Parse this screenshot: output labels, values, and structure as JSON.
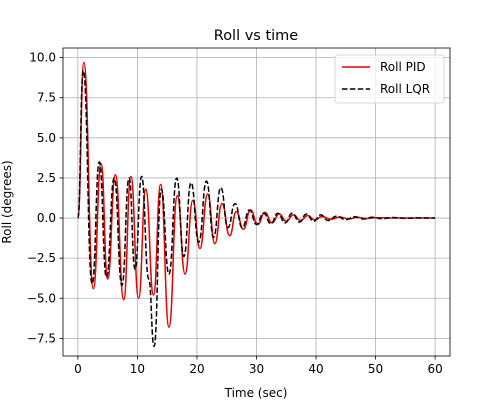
{
  "chart_data": {
    "type": "line",
    "title": "Roll vs time",
    "xlabel": "Time (sec)",
    "ylabel": "Roll (degrees)",
    "xlim": [
      -2.5,
      62.5
    ],
    "ylim": [
      -8.6,
      10.6
    ],
    "xticks": [
      0,
      10,
      20,
      30,
      40,
      50,
      60
    ],
    "xtick_labels": [
      "0",
      "10",
      "20",
      "30",
      "40",
      "50",
      "60"
    ],
    "yticks": [
      -7.5,
      -5.0,
      -2.5,
      0.0,
      2.5,
      5.0,
      7.5,
      10.0
    ],
    "ytick_labels": [
      "−7.5",
      "−5.0",
      "−2.5",
      "0.0",
      "2.5",
      "5.0",
      "7.5",
      "10.0"
    ],
    "grid": true,
    "legend_position": "top-right",
    "series": [
      {
        "name": "Roll PID",
        "color": "#e60000",
        "style": "solid",
        "x": [
          0,
          1.0,
          2.6,
          3.9,
          5.0,
          6.3,
          7.7,
          8.9,
          10.2,
          11.4,
          12.7,
          13.9,
          15.3,
          16.7,
          18.0,
          19.3,
          20.5,
          21.8,
          23.0,
          24.2,
          25.5,
          26.6,
          27.8,
          29.0,
          30.2,
          31.4,
          32.6,
          33.8,
          35.0,
          36.2,
          37.4,
          38.6,
          39.8,
          41.0,
          42.5,
          44.0,
          45.5,
          47.0,
          48.5,
          50.0,
          52.0,
          54.0,
          56.0,
          58.0,
          60.0
        ],
        "y": [
          0,
          9.7,
          -4.4,
          3.4,
          -3.8,
          2.7,
          -5.1,
          2.6,
          -5.0,
          1.8,
          -4.8,
          2.1,
          -6.8,
          1.4,
          -3.5,
          1.1,
          -1.9,
          1.5,
          -1.6,
          0.9,
          -1.1,
          0.4,
          -0.7,
          0.5,
          -0.4,
          0.35,
          -0.3,
          0.25,
          -0.2,
          0.2,
          -0.15,
          0.15,
          -0.12,
          0.1,
          -0.08,
          0.06,
          -0.05,
          0.04,
          -0.03,
          0.02,
          0.01,
          0.0,
          0.0,
          0.0,
          0.0
        ]
      },
      {
        "name": "Roll LQR",
        "color": "#000000",
        "style": "dashed",
        "x": [
          0,
          0.9,
          2.4,
          3.6,
          4.8,
          6.1,
          7.4,
          8.6,
          9.6,
          10.7,
          11.9,
          12.8,
          14.0,
          15.3,
          16.6,
          17.8,
          19.0,
          20.3,
          21.6,
          22.8,
          24.0,
          25.2,
          26.4,
          27.6,
          28.8,
          30.0,
          31.2,
          32.4,
          33.6,
          34.8,
          36.0,
          37.2,
          38.4,
          39.6,
          40.8,
          42.0,
          43.5,
          45.0,
          46.5,
          48.0,
          49.5,
          51.0,
          53.0,
          55.0,
          57.0,
          60.0
        ],
        "y": [
          0,
          9.2,
          -4.1,
          3.5,
          -3.7,
          2.5,
          -4.2,
          2.5,
          -3.2,
          2.6,
          -3.8,
          -8.0,
          1.8,
          -3.5,
          2.5,
          -2.4,
          2.2,
          -1.5,
          2.3,
          -1.2,
          1.9,
          -0.6,
          0.9,
          -0.6,
          0.5,
          -0.4,
          0.3,
          -0.35,
          0.3,
          -0.3,
          0.3,
          -0.25,
          0.25,
          -0.2,
          0.2,
          -0.15,
          0.12,
          -0.1,
          0.08,
          -0.06,
          0.05,
          -0.04,
          0.03,
          -0.02,
          0.01,
          0.0
        ]
      }
    ]
  }
}
